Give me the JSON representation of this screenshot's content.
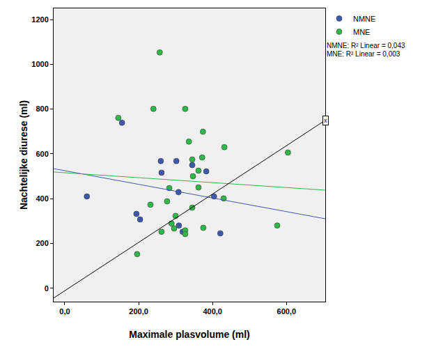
{
  "chart_data": {
    "type": "scatter",
    "x_label": "Maximale plasvolume (ml)",
    "y_label": "Nachtelijke diurese (ml)",
    "xlim": [
      -30,
      705
    ],
    "ylim": [
      -60,
      1250
    ],
    "xticks": [
      {
        "value": 0,
        "label": "0,0"
      },
      {
        "value": 200,
        "label": "200,0"
      },
      {
        "value": 400,
        "label": "400,0"
      },
      {
        "value": 600,
        "label": "600,0"
      }
    ],
    "yticks": [
      0,
      200,
      400,
      600,
      800,
      1000,
      1200
    ],
    "grid": false,
    "legend": "right",
    "series": [
      {
        "name": "NMNE",
        "color": "#3e58ac",
        "marker": "circle",
        "x": [
          60,
          155,
          194,
          204,
          260,
          262,
          302,
          308,
          309,
          319,
          345,
          383,
          404,
          421
        ],
        "values": [
          410,
          739,
          332,
          307,
          568,
          516,
          568,
          429,
          280,
          252,
          550,
          522,
          410,
          245
        ],
        "fit_line": {
          "x": [
            -30,
            705
          ],
          "y": [
            534,
            310
          ]
        },
        "fit_label": "NMNE: R² Linear = 0,043"
      },
      {
        "name": "MNE",
        "color": "#2eb848",
        "marker": "circle",
        "x": [
          257,
          145,
          240,
          326,
          336,
          374,
          432,
          372,
          345,
          362,
          347,
          283,
          362,
          232,
          277,
          430,
          345,
          300,
          289,
          296,
          326,
          326,
          375,
          262,
          196,
          604,
          575
        ],
        "values": [
          1053,
          761,
          801,
          801,
          655,
          699,
          630,
          584,
          575,
          525,
          500,
          447,
          450,
          373,
          388,
          401,
          360,
          323,
          289,
          267,
          258,
          242,
          270,
          252,
          152,
          606,
          280
        ],
        "fit_line": {
          "x": [
            -30,
            705
          ],
          "y": [
            519,
            438
          ]
        },
        "fit_label": "MNE: R² Linear = 0,003"
      }
    ],
    "reference_line": {
      "x": [
        -30,
        705
      ],
      "y": [
        -44,
        750
      ],
      "color": "#000000",
      "label": "x"
    }
  }
}
